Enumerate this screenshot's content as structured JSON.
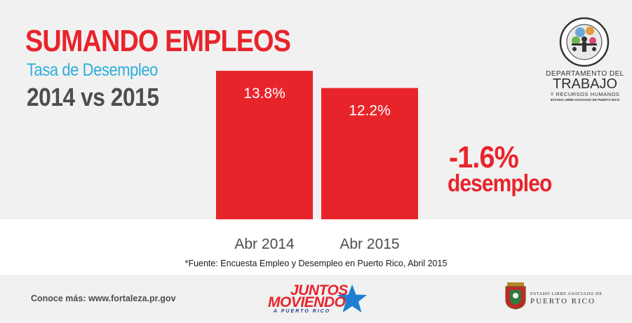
{
  "header": {
    "title": "SUMANDO EMPLEOS",
    "subtitle": "Tasa de Desempleo",
    "period": "2014 vs 2015"
  },
  "chart_data": {
    "type": "bar",
    "categories": [
      "Abr 2014",
      "Abr 2015"
    ],
    "values": [
      13.8,
      12.2
    ],
    "data_labels": [
      "13.8%",
      "12.2%"
    ],
    "title": "SUMANDO EMPLEOS",
    "subtitle": "Tasa de Desempleo",
    "xlabel": "",
    "ylabel": "",
    "grid": false,
    "bar_color": "#e8242b"
  },
  "annotation": {
    "change_value": "-1.6%",
    "change_label": "desempleo"
  },
  "source": "*Fuente: Encuesta Empleo y Desempleo en Puerto Rico, Abril 2015",
  "footer": {
    "link_text": "Conoce más: www.fortaleza.pr.gov",
    "campaign": {
      "line1": "JUNTOS",
      "line2": "MOVIENDO",
      "line3": "A PUERTO RICO"
    },
    "government": {
      "line1": "ESTADO LIBRE ASOCIADO DE",
      "line2": "PUERTO RICO"
    }
  },
  "department": {
    "line1": "DEPARTAMENTO DEL",
    "line2": "TRABAJO",
    "line3": "Y RECURSOS HUMANOS",
    "line4": "ESTADO LIBRE ASOCIADO DE PUERTO RICO"
  },
  "colors": {
    "accent_red": "#e8242b",
    "accent_blue": "#2eaed9",
    "text_gray": "#4d4d4f",
    "band_gray": "#f1f1f1",
    "campaign_blue": "#1d3f8a"
  }
}
